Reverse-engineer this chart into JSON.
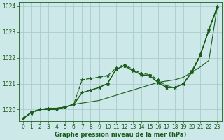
{
  "xlabel": "Graphe pression niveau de la mer (hPa)",
  "bg_color": "#cce8e8",
  "grid_color": "#aacccc",
  "line_color": "#1a5c1a",
  "ylim": [
    1019.55,
    1024.15
  ],
  "xlim": [
    -0.5,
    23.5
  ],
  "yticks": [
    1020,
    1021,
    1022,
    1023,
    1024
  ],
  "xticks": [
    0,
    1,
    2,
    3,
    4,
    5,
    6,
    7,
    8,
    9,
    10,
    11,
    12,
    13,
    14,
    15,
    16,
    17,
    18,
    19,
    20,
    21,
    22,
    23
  ],
  "series": [
    {
      "y": [
        1019.65,
        1019.9,
        1020.0,
        1020.05,
        1020.05,
        1020.1,
        1020.2,
        1020.25,
        1020.3,
        1020.35,
        1020.45,
        1020.55,
        1020.65,
        1020.75,
        1020.85,
        1020.95,
        1021.05,
        1021.1,
        1021.15,
        1021.25,
        1021.45,
        1021.65,
        1021.9,
        1024.0
      ],
      "linestyle": "-",
      "marker": false,
      "linewidth": 0.8
    },
    {
      "y": [
        1019.65,
        1019.85,
        1020.0,
        1020.05,
        1020.05,
        1020.1,
        1020.2,
        1021.15,
        1021.2,
        1021.25,
        1021.3,
        1021.6,
        1021.75,
        1021.55,
        1021.4,
        1021.35,
        1021.15,
        1020.9,
        1020.85,
        1021.0,
        1021.5,
        1022.15,
        1023.05,
        1023.95
      ],
      "linestyle": "--",
      "marker": true,
      "linewidth": 0.9
    },
    {
      "y": [
        1019.65,
        1019.9,
        1020.0,
        1020.0,
        1020.0,
        1020.1,
        1020.2,
        1020.65,
        1020.75,
        1020.85,
        1021.0,
        1021.55,
        1021.7,
        1021.5,
        1021.35,
        1021.3,
        1021.05,
        1020.85,
        1020.85,
        1021.0,
        1021.45,
        1022.1,
        1023.1,
        1023.95
      ],
      "linestyle": "-",
      "marker": true,
      "linewidth": 0.9
    },
    {
      "y": [
        1019.65,
        1019.9,
        1020.0,
        1020.0,
        1020.0,
        1020.1,
        1020.2,
        1020.65,
        1020.75,
        1020.85,
        1021.0,
        1021.55,
        1021.7,
        1021.5,
        1021.35,
        1021.3,
        1021.05,
        1020.85,
        1020.85,
        1021.0,
        1021.45,
        1022.1,
        1023.1,
        1024.0
      ],
      "linestyle": "-",
      "marker": true,
      "linewidth": 0.9
    }
  ],
  "marker_style": "*",
  "markersize": 3.5,
  "tick_labelsize": 5.5,
  "xlabel_fontsize": 6.0
}
